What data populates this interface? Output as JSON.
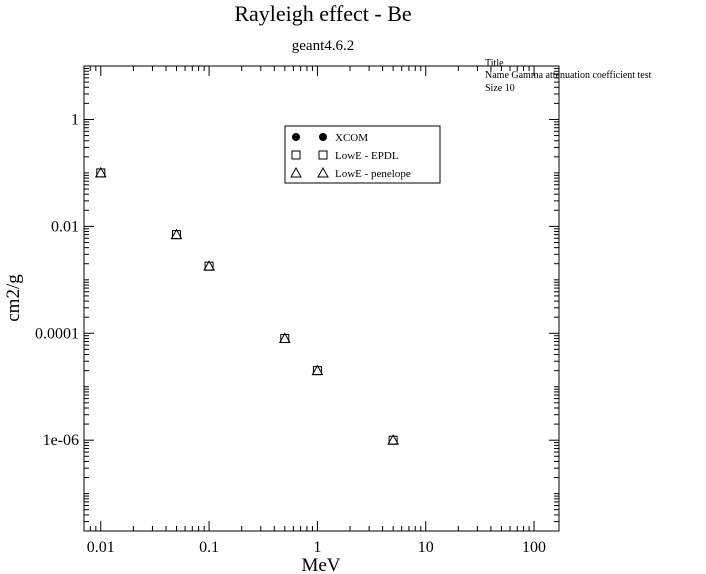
{
  "chart_data": {
    "type": "scatter",
    "title": "Rayleigh effect - Be",
    "subtitle": "geant4.6.2",
    "xlabel": "MeV",
    "ylabel": "cm2/g",
    "xscale": "log",
    "yscale": "log",
    "xlim": [
      0.007,
      170
    ],
    "ylim": [
      2e-08,
      10
    ],
    "x_ticks": [
      0.01,
      0.1,
      1,
      10,
      100
    ],
    "x_tick_labels": [
      "0.01",
      "0.1",
      "1",
      "10",
      "100"
    ],
    "y_ticks": [
      1e-06,
      0.0001,
      0.01,
      1
    ],
    "y_tick_labels": [
      "1e-06",
      "0.0001",
      "0.01",
      "1"
    ],
    "grid": false,
    "legend_position": "top-center",
    "series": [
      {
        "name": "XCOM",
        "marker": "filled-circle",
        "x": [],
        "y": []
      },
      {
        "name": "LowE - EPDL",
        "marker": "open-square",
        "x": [
          0.01,
          0.05,
          0.1,
          0.5,
          1,
          5
        ],
        "y": [
          0.1,
          0.007,
          0.0018,
          8e-05,
          2e-05,
          1e-06
        ]
      },
      {
        "name": "LowE - penelope",
        "marker": "open-triangle",
        "x": [
          0.01,
          0.05,
          0.1,
          0.5,
          1,
          5
        ],
        "y": [
          0.1,
          0.007,
          0.0018,
          8e-05,
          2e-05,
          1e-06
        ]
      }
    ],
    "side_note": {
      "line1": "Title",
      "line2": "Name  Gamma attenuation coefficient test",
      "line3": "Size  10"
    }
  }
}
